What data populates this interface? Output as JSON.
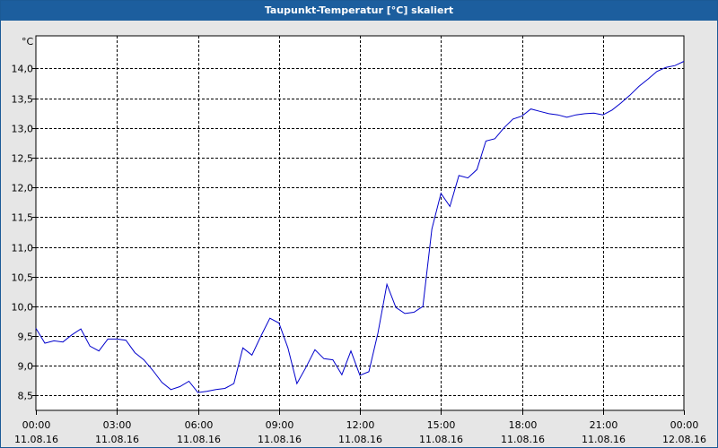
{
  "window": {
    "title": "Taupunkt-Temperatur [°C] skaliert"
  },
  "chart_data": {
    "type": "line",
    "title": "Taupunkt-Temperatur [°C] skaliert",
    "ylabel": "°C",
    "xlabel": "",
    "ylim": [
      8.25,
      14.55
    ],
    "y_ticks": [
      "14,0",
      "13,5",
      "13,0",
      "12,5",
      "12,0",
      "11,5",
      "11,0",
      "10,5",
      "10,0",
      "9,5",
      "9,0",
      "8,5"
    ],
    "y_tick_values": [
      14.0,
      13.5,
      13.0,
      12.5,
      12.0,
      11.5,
      11.0,
      10.5,
      10.0,
      9.5,
      9.0,
      8.5
    ],
    "x_ticks": [
      {
        "time": "00:00",
        "date": "11.08.16"
      },
      {
        "time": "03:00",
        "date": "11.08.16"
      },
      {
        "time": "06:00",
        "date": "11.08.16"
      },
      {
        "time": "09:00",
        "date": "11.08.16"
      },
      {
        "time": "12:00",
        "date": "11.08.16"
      },
      {
        "time": "15:00",
        "date": "11.08.16"
      },
      {
        "time": "18:00",
        "date": "11.08.16"
      },
      {
        "time": "21:00",
        "date": "11.08.16"
      },
      {
        "time": "00:00",
        "date": "12.08.16"
      }
    ],
    "grid": true,
    "line_color": "#0000cc",
    "series": [
      {
        "x": [
          "00:00",
          "00:20",
          "00:40",
          "01:00",
          "01:20",
          "01:40",
          "02:00",
          "02:20",
          "02:40",
          "03:00",
          "03:20",
          "03:40",
          "04:00",
          "04:20",
          "04:40",
          "05:00",
          "05:20",
          "05:40",
          "06:00",
          "06:20",
          "06:40",
          "07:00",
          "07:20",
          "07:40",
          "08:00",
          "08:20",
          "08:40",
          "09:00",
          "09:20",
          "09:40",
          "10:00",
          "10:20",
          "10:40",
          "11:00",
          "11:20",
          "11:40",
          "12:00",
          "12:20",
          "12:40",
          "13:00",
          "13:20",
          "13:40",
          "14:00",
          "14:20",
          "14:40",
          "15:00",
          "15:20",
          "15:40",
          "16:00",
          "16:20",
          "16:40",
          "17:00",
          "17:20",
          "17:40",
          "18:00",
          "18:20",
          "18:40",
          "19:00",
          "19:20",
          "19:40",
          "20:00",
          "20:20",
          "20:40",
          "21:00",
          "21:20",
          "21:40",
          "22:00",
          "22:20",
          "22:40",
          "23:00",
          "23:20",
          "23:40",
          "00:00 12.08.16"
        ],
        "values": [
          9.63,
          9.38,
          9.42,
          9.4,
          9.52,
          9.62,
          9.33,
          9.25,
          9.45,
          9.45,
          9.43,
          9.22,
          9.1,
          8.92,
          8.72,
          8.6,
          8.65,
          8.74,
          8.55,
          8.57,
          8.6,
          8.62,
          8.7,
          9.3,
          9.18,
          9.5,
          9.8,
          9.72,
          9.3,
          8.7,
          8.97,
          9.27,
          9.12,
          9.1,
          8.85,
          9.25,
          8.84,
          8.9,
          9.55,
          10.37,
          9.98,
          9.88,
          9.9,
          10.0,
          11.3,
          11.9,
          11.68,
          12.2,
          12.16,
          12.3,
          12.78,
          12.82,
          13.0,
          13.15,
          13.2,
          13.32,
          13.28,
          13.24,
          13.22,
          13.18,
          13.22,
          13.24,
          13.25,
          13.22,
          13.3,
          13.42,
          13.55,
          13.7,
          13.82,
          13.95,
          14.02,
          14.05,
          14.12
        ]
      }
    ]
  }
}
